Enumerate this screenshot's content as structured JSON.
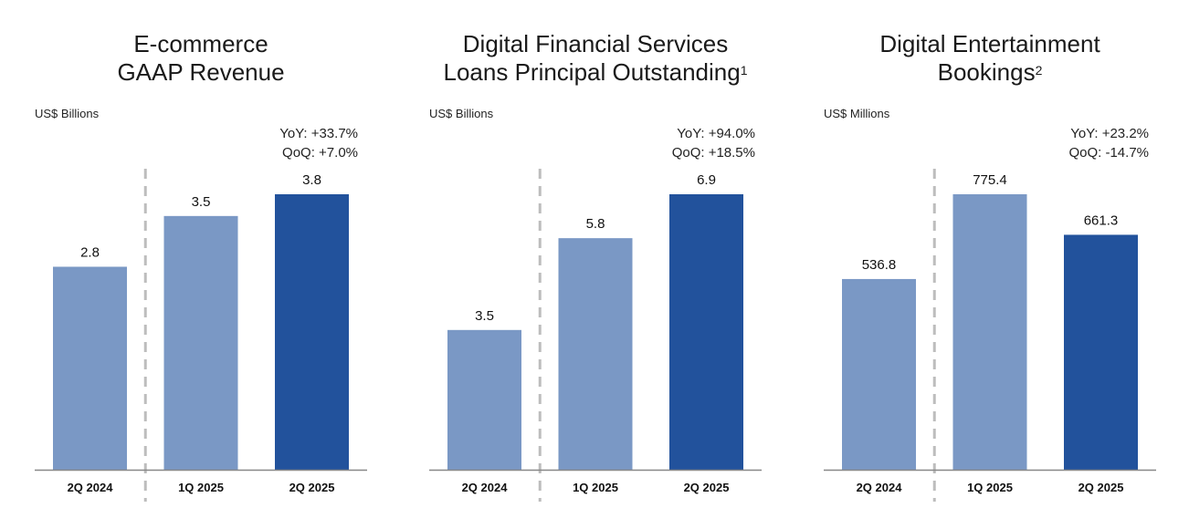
{
  "colors": {
    "prior": "#7a98c5",
    "current": "#22529c",
    "axis": "#888888",
    "divider": "#bdbdbd"
  },
  "chart_data": [
    {
      "type": "bar",
      "title_lines": [
        "E-commerce",
        "GAAP Revenue"
      ],
      "title_sup": "",
      "unit": "US$ Billions",
      "yoy": "YoY: +33.7%",
      "qoq": "QoQ: +7.0%",
      "categories": [
        "2Q 2024",
        "1Q 2025",
        "2Q 2025"
      ],
      "values": [
        2.8,
        3.5,
        3.8
      ],
      "value_labels": [
        "2.8",
        "3.5",
        "3.8"
      ]
    },
    {
      "type": "bar",
      "title_lines": [
        "Digital Financial Services",
        "Loans Principal Outstanding"
      ],
      "title_sup": "1",
      "unit": "US$ Billions",
      "yoy": "YoY: +94.0%",
      "qoq": "QoQ: +18.5%",
      "categories": [
        "2Q 2024",
        "1Q 2025",
        "2Q 2025"
      ],
      "values": [
        3.5,
        5.8,
        6.9
      ],
      "value_labels": [
        "3.5",
        "5.8",
        "6.9"
      ]
    },
    {
      "type": "bar",
      "title_lines": [
        "Digital Entertainment",
        "Bookings"
      ],
      "title_sup": "2",
      "unit": "US$ Millions",
      "yoy": "YoY: +23.2%",
      "qoq": "QoQ: -14.7%",
      "categories": [
        "2Q 2024",
        "1Q 2025",
        "2Q 2025"
      ],
      "values": [
        536.8,
        775.4,
        661.3
      ],
      "value_labels": [
        "536.8",
        "775.4",
        "661.3"
      ]
    }
  ]
}
